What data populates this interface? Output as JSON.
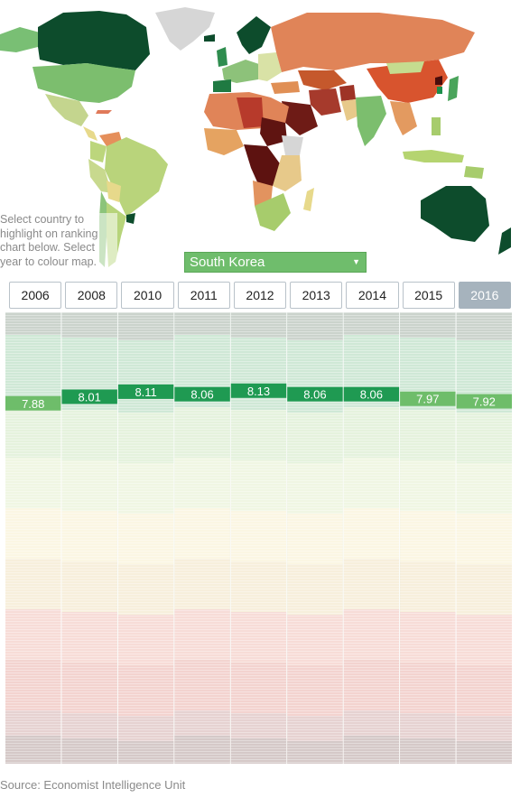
{
  "instructions": "Select country to highlight on ranking chart below. Select year to colour map.",
  "country_select": {
    "selected": "South Korea"
  },
  "years": [
    {
      "label": "2006",
      "active": false
    },
    {
      "label": "2008",
      "active": false
    },
    {
      "label": "2010",
      "active": false
    },
    {
      "label": "2011",
      "active": false
    },
    {
      "label": "2012",
      "active": false
    },
    {
      "label": "2013",
      "active": false
    },
    {
      "label": "2014",
      "active": false
    },
    {
      "label": "2015",
      "active": false
    },
    {
      "label": "2016",
      "active": true
    }
  ],
  "chart_data": {
    "type": "line",
    "title": "",
    "x": [
      "2006",
      "2008",
      "2010",
      "2011",
      "2012",
      "2013",
      "2014",
      "2015",
      "2016"
    ],
    "series": [
      {
        "name": "South Korea",
        "values": [
          7.88,
          8.01,
          8.11,
          8.06,
          8.13,
          8.06,
          8.06,
          7.97,
          7.92
        ]
      }
    ],
    "data_labels": [
      "7.88",
      "8.01",
      "8.11",
      "8.06",
      "8.13",
      "8.06",
      "8.06",
      "7.97",
      "7.92"
    ],
    "highlight_color": "#1f9a52",
    "highlight_color_light": "#6ebd6a"
  },
  "colors": {
    "full_democracy": "#1e6b3f",
    "flawed_democracy": "#c6d7a1",
    "hybrid_regime": "#f3e3b5",
    "authoritarian": "#e98f84",
    "ocean": "#ffffff",
    "no_data": "#d8d8d8"
  },
  "source": "Source: Economist Intelligence Unit"
}
